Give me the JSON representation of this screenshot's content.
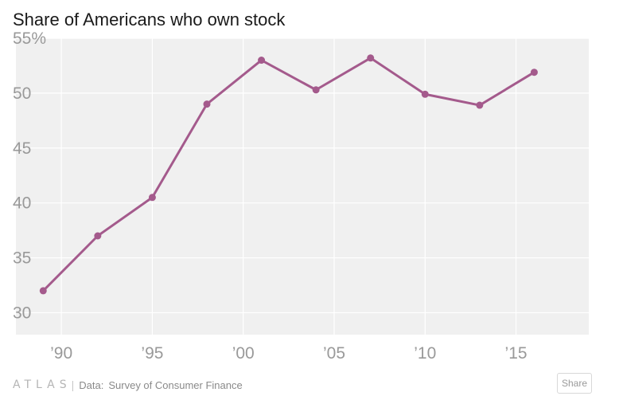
{
  "chart_data": {
    "type": "line",
    "title": "Share of Americans who own stock",
    "xlabel": "",
    "ylabel": "",
    "x": [
      1989,
      1992,
      1995,
      1998,
      2001,
      2004,
      2007,
      2010,
      2013,
      2016
    ],
    "series": [
      {
        "values": [
          32,
          37,
          40.5,
          49,
          53,
          50.3,
          53.2,
          49.9,
          48.9,
          51.9
        ],
        "color": "#a45a8c"
      }
    ],
    "xlim": [
      1987.5,
      2019
    ],
    "ylim": [
      28,
      55
    ],
    "y_ticks": [
      {
        "value": 30,
        "label": "30"
      },
      {
        "value": 35,
        "label": "35"
      },
      {
        "value": 40,
        "label": "40"
      },
      {
        "value": 45,
        "label": "45"
      },
      {
        "value": 50,
        "label": "50"
      },
      {
        "value": 55,
        "label": "55%"
      }
    ],
    "x_ticks": [
      {
        "value": 1990,
        "label": "’90"
      },
      {
        "value": 1995,
        "label": "’95"
      },
      {
        "value": 2000,
        "label": "’00"
      },
      {
        "value": 2005,
        "label": "’05"
      },
      {
        "value": 2010,
        "label": "’10"
      },
      {
        "value": 2015,
        "label": "’15"
      }
    ],
    "grid": true,
    "legend": "none"
  },
  "footer": {
    "logo": "ATLAS",
    "separator": "|",
    "source_label": "Data:",
    "source_value": "Survey of Consumer Finance",
    "share_label": "Share"
  },
  "colors": {
    "line": "#a45a8c",
    "background": "#f0f0f0",
    "grid": "#ffffff",
    "tick_text": "#999999"
  }
}
